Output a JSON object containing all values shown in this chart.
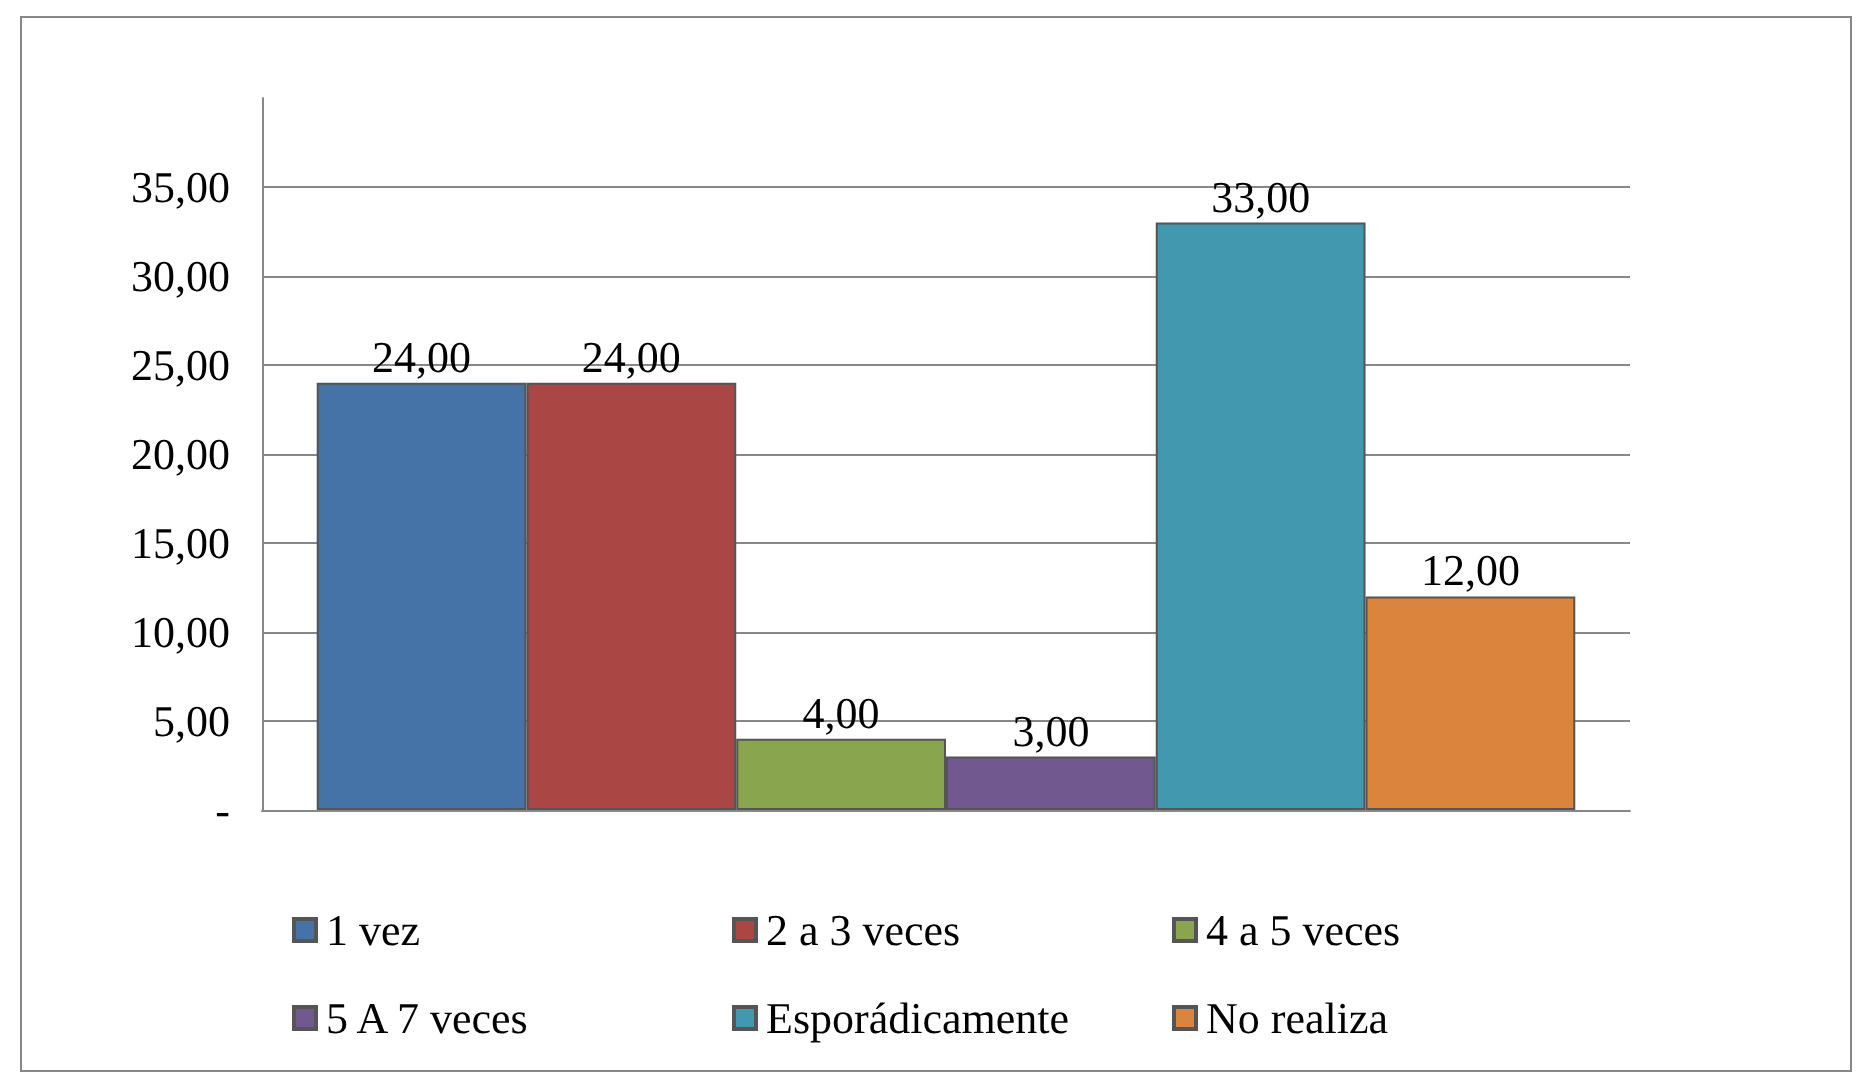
{
  "chart_data": {
    "type": "bar",
    "categories": [
      null
    ],
    "series": [
      {
        "name": "1 vez",
        "color": "#4572a7",
        "values": [
          24
        ],
        "value_labels": [
          "24,00"
        ]
      },
      {
        "name": "2 a 3 veces",
        "color": "#aa4643",
        "values": [
          24
        ],
        "value_labels": [
          "24,00"
        ]
      },
      {
        "name": "4 a 5 veces",
        "color": "#89a54e",
        "values": [
          4
        ],
        "value_labels": [
          "4,00"
        ]
      },
      {
        "name": "5 A 7 veces",
        "color": "#71588f",
        "values": [
          3
        ],
        "value_labels": [
          "3,00"
        ]
      },
      {
        "name": "Esporádicamente",
        "color": "#4198af",
        "values": [
          33
        ],
        "value_labels": [
          "33,00"
        ]
      },
      {
        "name": "No realiza",
        "color": "#db843d",
        "values": [
          12
        ],
        "value_labels": [
          "12,00"
        ]
      }
    ],
    "ylim": [
      0,
      40
    ],
    "yticks": [
      {
        "value": 0,
        "label": "-"
      },
      {
        "value": 5,
        "label": "5,00"
      },
      {
        "value": 10,
        "label": "10,00"
      },
      {
        "value": 15,
        "label": "15,00"
      },
      {
        "value": 20,
        "label": "20,00"
      },
      {
        "value": 25,
        "label": "25,00"
      },
      {
        "value": 30,
        "label": "30,00"
      },
      {
        "value": 35,
        "label": "35,00"
      }
    ],
    "grid": "y",
    "legend": "bottom"
  }
}
